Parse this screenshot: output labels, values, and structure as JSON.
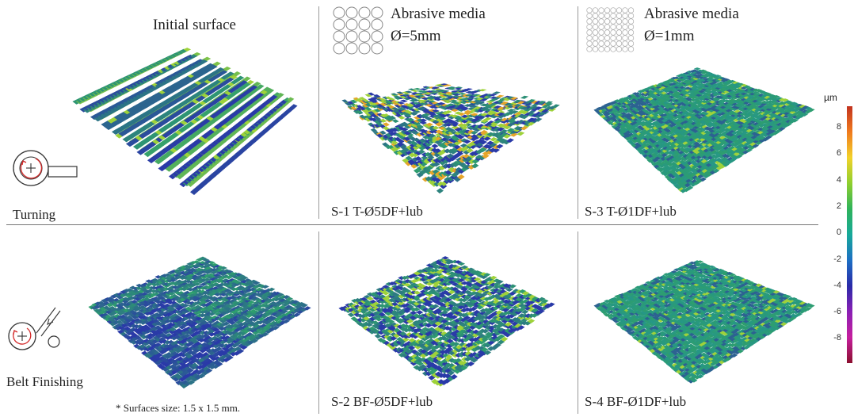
{
  "columns": {
    "initial": {
      "title": "Initial surface"
    },
    "d5": {
      "media_label": "Abrasive media",
      "diameter_label": "Ø=5mm"
    },
    "d1": {
      "media_label": "Abrasive media",
      "diameter_label": "Ø=1mm"
    }
  },
  "rows": {
    "turning": {
      "label": "Turning"
    },
    "belt": {
      "label": "Belt Finishing"
    }
  },
  "samples": {
    "s1": "S-1  T-Ø5DF+lub",
    "s2": "S-2  BF-Ø5DF+lub",
    "s3": "S-3  T-Ø1DF+lub",
    "s4": "S-4  BF-Ø1DF+lub"
  },
  "footnote": "* Surfaces size: 1.5 x 1.5 mm.",
  "colorbar": {
    "unit": "µm",
    "ticks": [
      "8",
      "6",
      "4",
      "2",
      "0",
      "-2",
      "-4",
      "-6",
      "-8"
    ],
    "colors": [
      "#c2331f",
      "#f07a1e",
      "#f2d22a",
      "#8fcf2e",
      "#2fb35a",
      "#17a99a",
      "#1d6fc4",
      "#2a2aa8",
      "#8a1fb5",
      "#c61f9e",
      "#8b0f2e"
    ]
  },
  "surface_colors": {
    "base": "#2e9e6e",
    "high": "#9ed23a",
    "low": "#2a3aa8",
    "peak": "#e6a52a"
  }
}
